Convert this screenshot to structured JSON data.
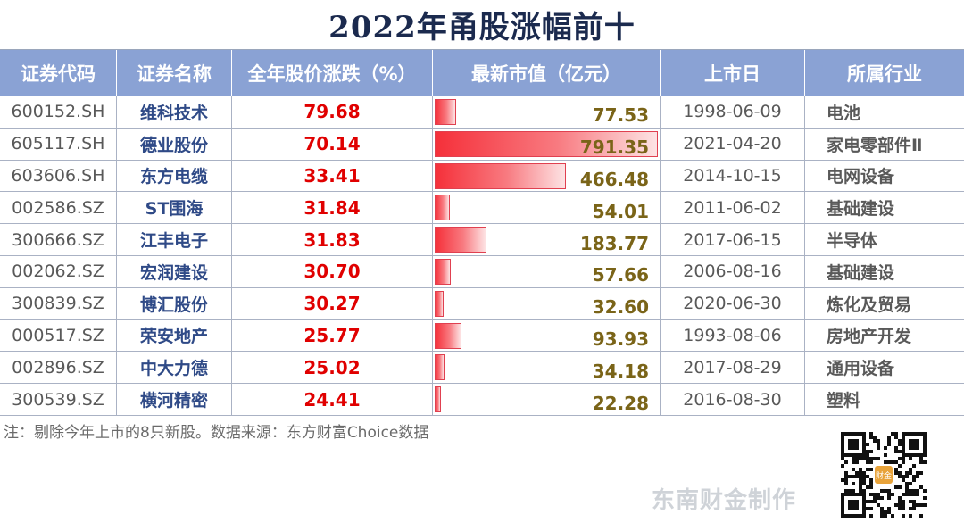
{
  "title": "2022年甬股涨幅前十",
  "headers": {
    "code": "证券代码",
    "name": "证券名称",
    "change": "全年股价涨跌（%）",
    "market_value": "最新市值（亿元）",
    "listing_date": "上市日",
    "industry": "所属行业"
  },
  "rows": [
    {
      "code": "600152.SH",
      "name": "维科技术",
      "change": "79.68",
      "market_value": "77.53",
      "listing_date": "1998-06-09",
      "industry": "电池"
    },
    {
      "code": "605117.SH",
      "name": "德业股份",
      "change": "70.14",
      "market_value": "791.35",
      "listing_date": "2021-04-20",
      "industry": "家电零部件Ⅱ"
    },
    {
      "code": "603606.SH",
      "name": "东方电缆",
      "change": "33.41",
      "market_value": "466.48",
      "listing_date": "2014-10-15",
      "industry": "电网设备"
    },
    {
      "code": "002586.SZ",
      "name": "ST围海",
      "change": "31.84",
      "market_value": "54.01",
      "listing_date": "2011-06-02",
      "industry": "基础建设"
    },
    {
      "code": "300666.SZ",
      "name": "江丰电子",
      "change": "31.83",
      "market_value": "183.77",
      "listing_date": "2017-06-15",
      "industry": "半导体"
    },
    {
      "code": "002062.SZ",
      "name": "宏润建设",
      "change": "30.70",
      "market_value": "57.66",
      "listing_date": "2006-08-16",
      "industry": "基础建设"
    },
    {
      "code": "300839.SZ",
      "name": "博汇股份",
      "change": "30.27",
      "market_value": "32.60",
      "listing_date": "2020-06-30",
      "industry": "炼化及贸易"
    },
    {
      "code": "000517.SZ",
      "name": "荣安地产",
      "change": "25.77",
      "market_value": "93.93",
      "listing_date": "1993-08-06",
      "industry": "房地产开发"
    },
    {
      "code": "002896.SZ",
      "name": "中大力德",
      "change": "25.02",
      "market_value": "34.18",
      "listing_date": "2017-08-29",
      "industry": "通用设备"
    },
    {
      "code": "300539.SZ",
      "name": "横河精密",
      "change": "24.41",
      "market_value": "22.28",
      "listing_date": "2016-08-30",
      "industry": "塑料"
    }
  ],
  "note": "注：剔除今年上市的8只新股。数据来源：东方财富Choice数据",
  "maker": "东南财金制作",
  "qr_label": "财金",
  "colors": {
    "header_bg": "#8aa2d4",
    "change_text": "#e00000",
    "market_value_text": "#7a6418",
    "name_text": "#2f4a87",
    "bar": "#f5303a"
  },
  "chart_data": {
    "type": "table",
    "title": "2022年甬股涨幅前十",
    "columns": [
      "证券代码",
      "证券名称",
      "全年股价涨跌（%）",
      "最新市值（亿元）",
      "上市日",
      "所属行业"
    ],
    "data_bar_column": "最新市值（亿元）",
    "market_values": [
      77.53,
      791.35,
      466.48,
      54.01,
      183.77,
      57.66,
      32.6,
      93.93,
      34.18,
      22.28
    ],
    "changes": [
      79.68,
      70.14,
      33.41,
      31.84,
      31.83,
      30.7,
      30.27,
      25.77,
      25.02,
      24.41
    ]
  }
}
